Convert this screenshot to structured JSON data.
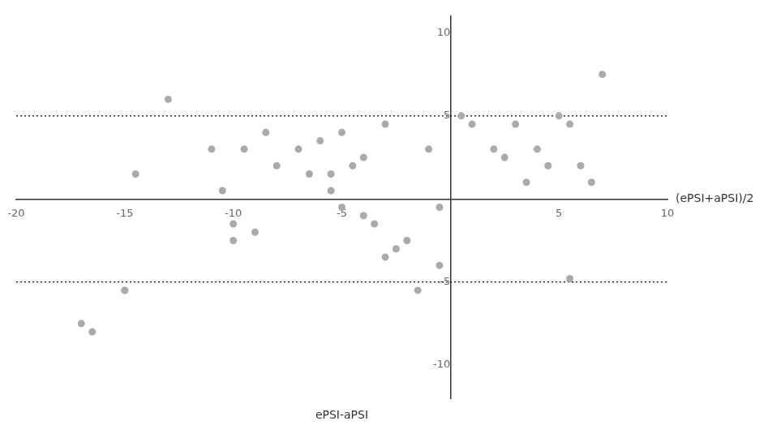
{
  "chart_data": {
    "type": "scatter",
    "x": [
      -16.5,
      -15,
      -14.5,
      -13,
      -11,
      -10.5,
      -10,
      -10,
      -9.5,
      -9,
      -8.5,
      -8,
      -7,
      -6.5,
      -6,
      -5.5,
      -5.5,
      -5,
      -5,
      -4.5,
      -4,
      -4,
      -3.5,
      -3,
      -3,
      -2.5,
      -2,
      -1.5,
      -1,
      -0.5,
      -0.5,
      0.5,
      1,
      2,
      2.5,
      3,
      3.5,
      4,
      4.5,
      5,
      5.5,
      5.5,
      6,
      6.5,
      7,
      -17,
      -15
    ],
    "values": [
      -8,
      -5.5,
      1.5,
      6,
      3,
      0.5,
      -1.5,
      -2.5,
      3,
      -2,
      4,
      2,
      3,
      1.5,
      3.5,
      0.5,
      1.5,
      -0.5,
      4,
      2,
      -1,
      2.5,
      -1.5,
      -3.5,
      4.5,
      -3,
      -2.5,
      -5.5,
      3,
      -4,
      -0.5,
      5,
      4.5,
      3,
      2.5,
      4.5,
      1,
      3,
      2,
      5,
      -4.8,
      4.5,
      2,
      1,
      7.5,
      -7.5,
      -5.5
    ],
    "color": "#aaaaaa",
    "marker": "circle",
    "xlim": [
      -20,
      10
    ],
    "ylim": [
      -12,
      11
    ],
    "xticks": [
      -20,
      -15,
      -10,
      -5,
      5,
      10
    ],
    "yticks": [
      -10,
      -5,
      5,
      10
    ],
    "xlabel": "ePSI-aPSI",
    "annotations": [
      {
        "text": "(ePSI+aPSI)/2",
        "x": 10,
        "y": 0
      }
    ],
    "reference_lines": [
      {
        "y": 5,
        "color": "black",
        "line_style": "dotted"
      },
      {
        "y": -5,
        "color": "black",
        "line_style": "dotted"
      }
    ],
    "grid": false
  }
}
